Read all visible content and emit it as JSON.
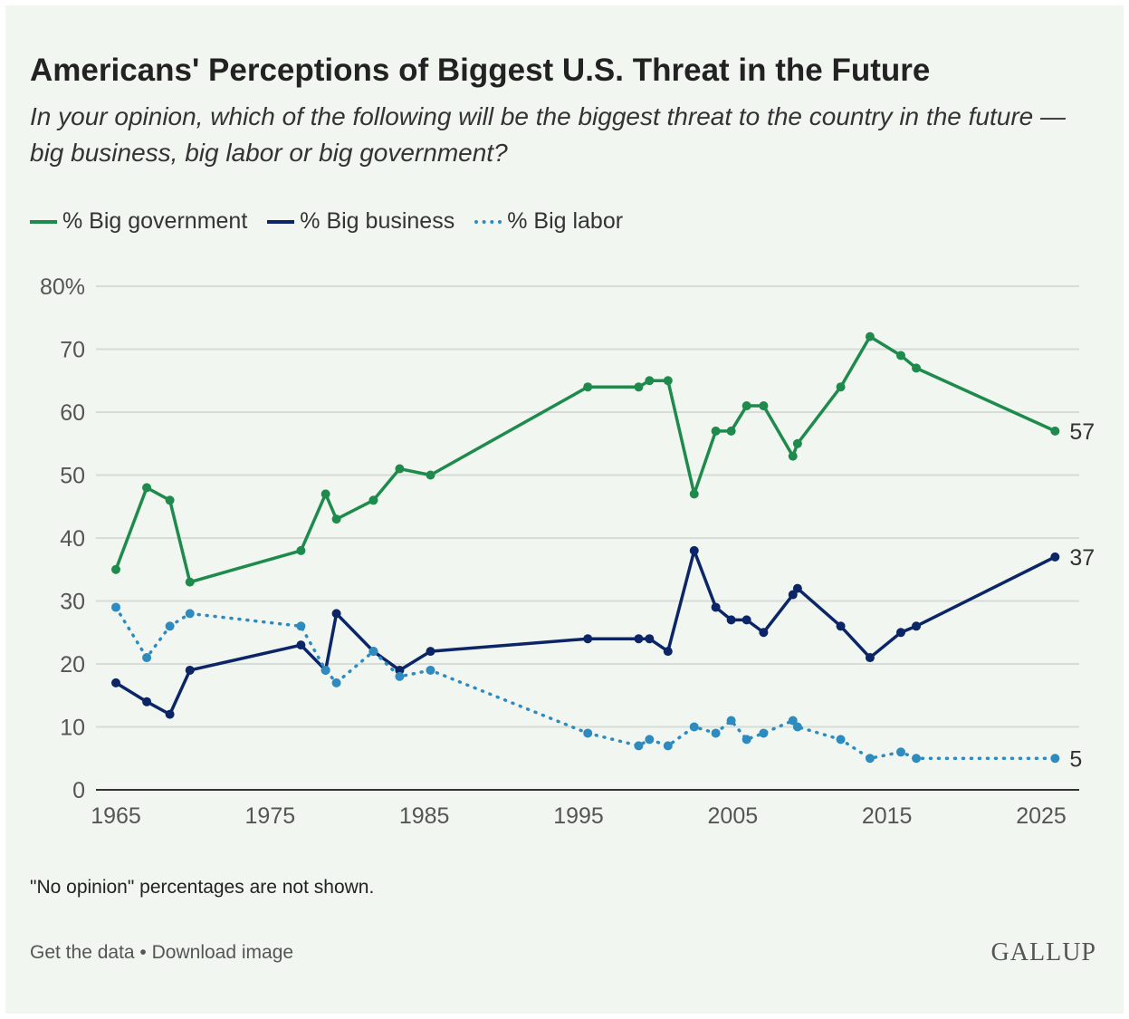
{
  "chart_data": {
    "type": "line",
    "title": "Americans' Perceptions of Biggest U.S. Threat in the Future",
    "subtitle": "In your opinion, which of the following will be the biggest threat to the country in the future — big business, big labor or big government?",
    "xlabel": "",
    "ylabel": "",
    "xlim": [
      1965,
      2026
    ],
    "ylim": [
      0,
      80
    ],
    "xticks": [
      "1965",
      "1975",
      "1985",
      "1995",
      "2005",
      "2015",
      "2025"
    ],
    "yticks": [
      "0",
      "10",
      "20",
      "30",
      "40",
      "50",
      "60",
      "70",
      "80%"
    ],
    "x": [
      1965,
      1967,
      1968.5,
      1969.8,
      1977,
      1978.6,
      1979.3,
      1981.7,
      1983.4,
      1985.4,
      1995.6,
      1998.9,
      1999.6,
      2000.8,
      2002.5,
      2003.9,
      2004.9,
      2005.9,
      2007,
      2008.9,
      2009.2,
      2012,
      2013.9,
      2015.9,
      2016.9,
      2025.9
    ],
    "series": [
      {
        "name": "% Big government",
        "color": "#1e8a4c",
        "dash": false,
        "end_label": "57",
        "values": [
          35,
          48,
          46,
          33,
          38,
          47,
          43,
          46,
          51,
          50,
          64,
          64,
          65,
          65,
          47,
          57,
          57,
          61,
          61,
          53,
          55,
          64,
          72,
          69,
          67,
          57
        ]
      },
      {
        "name": "% Big business",
        "color": "#0b2566",
        "dash": false,
        "end_label": "37",
        "values": [
          17,
          14,
          12,
          19,
          23,
          19,
          28,
          22,
          19,
          22,
          24,
          24,
          24,
          22,
          38,
          29,
          27,
          27,
          25,
          31,
          32,
          26,
          21,
          25,
          26,
          37
        ]
      },
      {
        "name": "% Big labor",
        "color": "#2e8bc0",
        "dash": true,
        "end_label": "5",
        "values": [
          29,
          21,
          26,
          28,
          26,
          19,
          17,
          22,
          18,
          19,
          9,
          7,
          8,
          7,
          10,
          9,
          11,
          8,
          9,
          11,
          10,
          8,
          5,
          6,
          5,
          5
        ]
      }
    ],
    "grid": true,
    "legend": "top-left"
  },
  "note": "\"No opinion\" percentages are not shown.",
  "links": {
    "get_data": "Get the data",
    "sep": " • ",
    "download": "Download image"
  },
  "logo": "GALLUP"
}
